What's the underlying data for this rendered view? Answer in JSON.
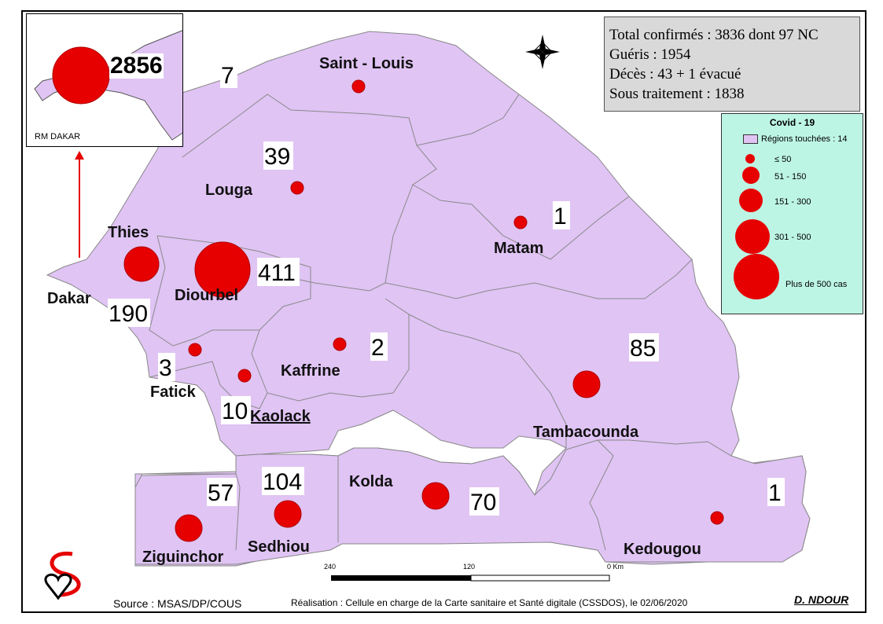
{
  "stats": {
    "line1": "Total confirmés : 3836  dont 97  NC",
    "line2": "Guéris : 1954",
    "line3": "Décès : 43 + 1 évacué",
    "line4": "Sous traitement : 1838"
  },
  "legend": {
    "title": "Covid - 19",
    "regions_touched": "Régions touchées : 14",
    "classes": [
      "≤ 50",
      "51 - 150",
      "151 - 300",
      "301 - 500",
      "Plus de 500 cas"
    ]
  },
  "inset": {
    "label": "RM DAKAR",
    "count": "2856"
  },
  "regions": [
    {
      "name": "Saint - Louis",
      "count": "7"
    },
    {
      "name": "Louga",
      "count": "39"
    },
    {
      "name": "Matam",
      "count": "1"
    },
    {
      "name": "Thies",
      "count": "190"
    },
    {
      "name": "Diourbel",
      "count": "411"
    },
    {
      "name": "Dakar",
      "count": ""
    },
    {
      "name": "Fatick",
      "count": "3"
    },
    {
      "name": "Kaffrine",
      "count": "2"
    },
    {
      "name": "Kaolack",
      "count": "10"
    },
    {
      "name": "Tambacounda",
      "count": "85"
    },
    {
      "name": "Kolda",
      "count": "70"
    },
    {
      "name": "Sedhiou",
      "count": "104"
    },
    {
      "name": "Ziguinchor",
      "count": "57"
    },
    {
      "name": "Kedougou",
      "count": "1"
    }
  ],
  "scale": {
    "labels": [
      "240",
      "120",
      "0 Km"
    ]
  },
  "footer": {
    "source": "Source : MSAS/DP/COUS",
    "credit": "Réalisation : Cellule en charge de la Carte sanitaire et Santé digitale (CSSDOS), le 02/06/2020",
    "author": "D. NDOUR"
  },
  "colors": {
    "region_fill": "#e0c4f4",
    "dot": "#e60000",
    "legend_bg": "#bdf5e4",
    "stats_bg": "#d9d9d9"
  }
}
